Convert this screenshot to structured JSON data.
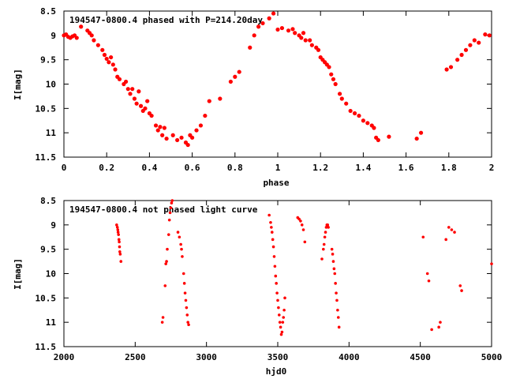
{
  "chart_data": [
    {
      "type": "scatter",
      "title": "194547-0800.4 phased with P=214.20day",
      "xlabel": "phase",
      "ylabel": "I[mag]",
      "xlim": [
        0,
        2
      ],
      "ylim": [
        11.5,
        8.5
      ],
      "y_inverted": true,
      "grid": false,
      "x_ticks": [
        "0",
        "0.2",
        "0.4",
        "0.6",
        "0.8",
        "1",
        "1.2",
        "1.4",
        "1.6",
        "1.8",
        "2"
      ],
      "y_ticks": [
        "8.5",
        "9",
        "9.5",
        "10",
        "10.5",
        "11",
        "11.5"
      ],
      "marker_color": "#ff0000",
      "points": [
        [
          0.0,
          9.0
        ],
        [
          0.01,
          8.98
        ],
        [
          0.02,
          9.03
        ],
        [
          0.03,
          9.05
        ],
        [
          0.04,
          9.02
        ],
        [
          0.05,
          9.0
        ],
        [
          0.06,
          9.05
        ],
        [
          0.08,
          8.82
        ],
        [
          0.11,
          8.9
        ],
        [
          0.12,
          8.95
        ],
        [
          0.13,
          9.0
        ],
        [
          0.14,
          9.1
        ],
        [
          0.16,
          9.2
        ],
        [
          0.18,
          9.3
        ],
        [
          0.19,
          9.4
        ],
        [
          0.2,
          9.48
        ],
        [
          0.21,
          9.55
        ],
        [
          0.22,
          9.45
        ],
        [
          0.23,
          9.6
        ],
        [
          0.24,
          9.7
        ],
        [
          0.25,
          9.85
        ],
        [
          0.26,
          9.9
        ],
        [
          0.28,
          10.0
        ],
        [
          0.29,
          9.95
        ],
        [
          0.3,
          10.1
        ],
        [
          0.31,
          10.2
        ],
        [
          0.32,
          10.1
        ],
        [
          0.33,
          10.3
        ],
        [
          0.34,
          10.4
        ],
        [
          0.35,
          10.15
        ],
        [
          0.36,
          10.45
        ],
        [
          0.37,
          10.55
        ],
        [
          0.38,
          10.5
        ],
        [
          0.39,
          10.35
        ],
        [
          0.4,
          10.6
        ],
        [
          0.41,
          10.65
        ],
        [
          0.43,
          10.85
        ],
        [
          0.44,
          10.95
        ],
        [
          0.45,
          10.88
        ],
        [
          0.46,
          11.05
        ],
        [
          0.47,
          10.9
        ],
        [
          0.48,
          11.12
        ],
        [
          0.51,
          11.05
        ],
        [
          0.53,
          11.15
        ],
        [
          0.55,
          11.1
        ],
        [
          0.57,
          11.2
        ],
        [
          0.58,
          11.25
        ],
        [
          0.59,
          11.05
        ],
        [
          0.6,
          11.1
        ],
        [
          0.62,
          10.95
        ],
        [
          0.64,
          10.85
        ],
        [
          0.66,
          10.65
        ],
        [
          0.68,
          10.35
        ],
        [
          0.73,
          10.3
        ],
        [
          0.78,
          9.95
        ],
        [
          0.8,
          9.85
        ],
        [
          0.82,
          9.75
        ],
        [
          0.87,
          9.25
        ],
        [
          0.89,
          9.0
        ],
        [
          0.91,
          8.82
        ],
        [
          0.93,
          8.75
        ],
        [
          0.96,
          8.65
        ],
        [
          0.98,
          8.55
        ],
        [
          1.0,
          8.88
        ],
        [
          1.02,
          8.85
        ],
        [
          1.05,
          8.9
        ],
        [
          1.07,
          8.87
        ],
        [
          1.08,
          8.95
        ],
        [
          1.1,
          9.0
        ],
        [
          1.11,
          9.05
        ],
        [
          1.12,
          8.95
        ],
        [
          1.13,
          9.1
        ],
        [
          1.15,
          9.1
        ],
        [
          1.16,
          9.2
        ],
        [
          1.18,
          9.25
        ],
        [
          1.19,
          9.3
        ],
        [
          1.2,
          9.45
        ],
        [
          1.21,
          9.5
        ],
        [
          1.22,
          9.55
        ],
        [
          1.23,
          9.6
        ],
        [
          1.24,
          9.65
        ],
        [
          1.25,
          9.8
        ],
        [
          1.26,
          9.9
        ],
        [
          1.27,
          10.0
        ],
        [
          1.29,
          10.2
        ],
        [
          1.3,
          10.3
        ],
        [
          1.32,
          10.4
        ],
        [
          1.34,
          10.55
        ],
        [
          1.36,
          10.6
        ],
        [
          1.38,
          10.65
        ],
        [
          1.4,
          10.75
        ],
        [
          1.42,
          10.8
        ],
        [
          1.44,
          10.85
        ],
        [
          1.45,
          10.9
        ],
        [
          1.46,
          11.1
        ],
        [
          1.47,
          11.15
        ],
        [
          1.52,
          11.08
        ],
        [
          1.65,
          11.12
        ],
        [
          1.67,
          11.0
        ],
        [
          1.79,
          9.7
        ],
        [
          1.81,
          9.65
        ],
        [
          1.84,
          9.5
        ],
        [
          1.86,
          9.4
        ],
        [
          1.88,
          9.3
        ],
        [
          1.9,
          9.2
        ],
        [
          1.92,
          9.1
        ],
        [
          1.94,
          9.15
        ],
        [
          1.97,
          8.98
        ],
        [
          1.99,
          9.0
        ]
      ]
    },
    {
      "type": "scatter",
      "title": "194547-0800.4 not phased light curve",
      "xlabel": "hjd0",
      "ylabel": "I[mag]",
      "xlim": [
        2000,
        5000
      ],
      "ylim": [
        11.5,
        8.5
      ],
      "y_inverted": true,
      "grid": false,
      "x_ticks": [
        "2000",
        "2500",
        "3000",
        "3500",
        "4000",
        "4500",
        "5000"
      ],
      "y_ticks": [
        "8.5",
        "9",
        "9.5",
        "10",
        "10.5",
        "11",
        "11.5"
      ],
      "marker_color": "#ff0000",
      "points": [
        [
          2370,
          9.0
        ],
        [
          2375,
          9.05
        ],
        [
          2378,
          9.1
        ],
        [
          2380,
          9.15
        ],
        [
          2383,
          9.2
        ],
        [
          2386,
          9.3
        ],
        [
          2388,
          9.35
        ],
        [
          2390,
          9.45
        ],
        [
          2392,
          9.55
        ],
        [
          2395,
          9.6
        ],
        [
          2400,
          9.75
        ],
        [
          2690,
          11.0
        ],
        [
          2695,
          10.9
        ],
        [
          2710,
          10.25
        ],
        [
          2715,
          9.8
        ],
        [
          2720,
          9.75
        ],
        [
          2725,
          9.5
        ],
        [
          2735,
          9.2
        ],
        [
          2740,
          8.9
        ],
        [
          2745,
          8.75
        ],
        [
          2750,
          8.65
        ],
        [
          2755,
          8.55
        ],
        [
          2760,
          8.5
        ],
        [
          2800,
          9.15
        ],
        [
          2810,
          9.25
        ],
        [
          2820,
          9.4
        ],
        [
          2825,
          9.5
        ],
        [
          2830,
          9.65
        ],
        [
          2840,
          10.0
        ],
        [
          2845,
          10.2
        ],
        [
          2850,
          10.4
        ],
        [
          2855,
          10.55
        ],
        [
          2860,
          10.7
        ],
        [
          2865,
          10.85
        ],
        [
          2870,
          11.0
        ],
        [
          2875,
          11.05
        ],
        [
          3440,
          8.8
        ],
        [
          3450,
          8.95
        ],
        [
          3455,
          9.05
        ],
        [
          3460,
          9.15
        ],
        [
          3465,
          9.3
        ],
        [
          3470,
          9.45
        ],
        [
          3475,
          9.65
        ],
        [
          3480,
          9.85
        ],
        [
          3485,
          10.05
        ],
        [
          3490,
          10.2
        ],
        [
          3495,
          10.4
        ],
        [
          3500,
          10.55
        ],
        [
          3505,
          10.7
        ],
        [
          3510,
          10.85
        ],
        [
          3515,
          11.0
        ],
        [
          3520,
          11.1
        ],
        [
          3525,
          11.25
        ],
        [
          3530,
          11.2
        ],
        [
          3535,
          11.0
        ],
        [
          3540,
          10.9
        ],
        [
          3545,
          10.75
        ],
        [
          3550,
          10.5
        ],
        [
          3640,
          8.85
        ],
        [
          3650,
          8.88
        ],
        [
          3660,
          8.92
        ],
        [
          3670,
          9.0
        ],
        [
          3680,
          9.1
        ],
        [
          3690,
          9.35
        ],
        [
          3810,
          9.7
        ],
        [
          3820,
          9.5
        ],
        [
          3825,
          9.4
        ],
        [
          3830,
          9.25
        ],
        [
          3835,
          9.15
        ],
        [
          3840,
          9.05
        ],
        [
          3845,
          9.0
        ],
        [
          3850,
          9.0
        ],
        [
          3855,
          9.05
        ],
        [
          3880,
          9.5
        ],
        [
          3885,
          9.6
        ],
        [
          3890,
          9.75
        ],
        [
          3895,
          9.9
        ],
        [
          3900,
          10.0
        ],
        [
          3905,
          10.2
        ],
        [
          3910,
          10.4
        ],
        [
          3915,
          10.55
        ],
        [
          3920,
          10.75
        ],
        [
          3925,
          10.9
        ],
        [
          3930,
          11.1
        ],
        [
          4520,
          9.25
        ],
        [
          4550,
          10.0
        ],
        [
          4560,
          10.15
        ],
        [
          4580,
          11.15
        ],
        [
          4630,
          11.1
        ],
        [
          4640,
          11.0
        ],
        [
          4680,
          9.3
        ],
        [
          4700,
          9.05
        ],
        [
          4720,
          9.1
        ],
        [
          4740,
          9.15
        ],
        [
          4780,
          10.25
        ],
        [
          4790,
          10.35
        ],
        [
          5000,
          9.8
        ]
      ]
    }
  ]
}
